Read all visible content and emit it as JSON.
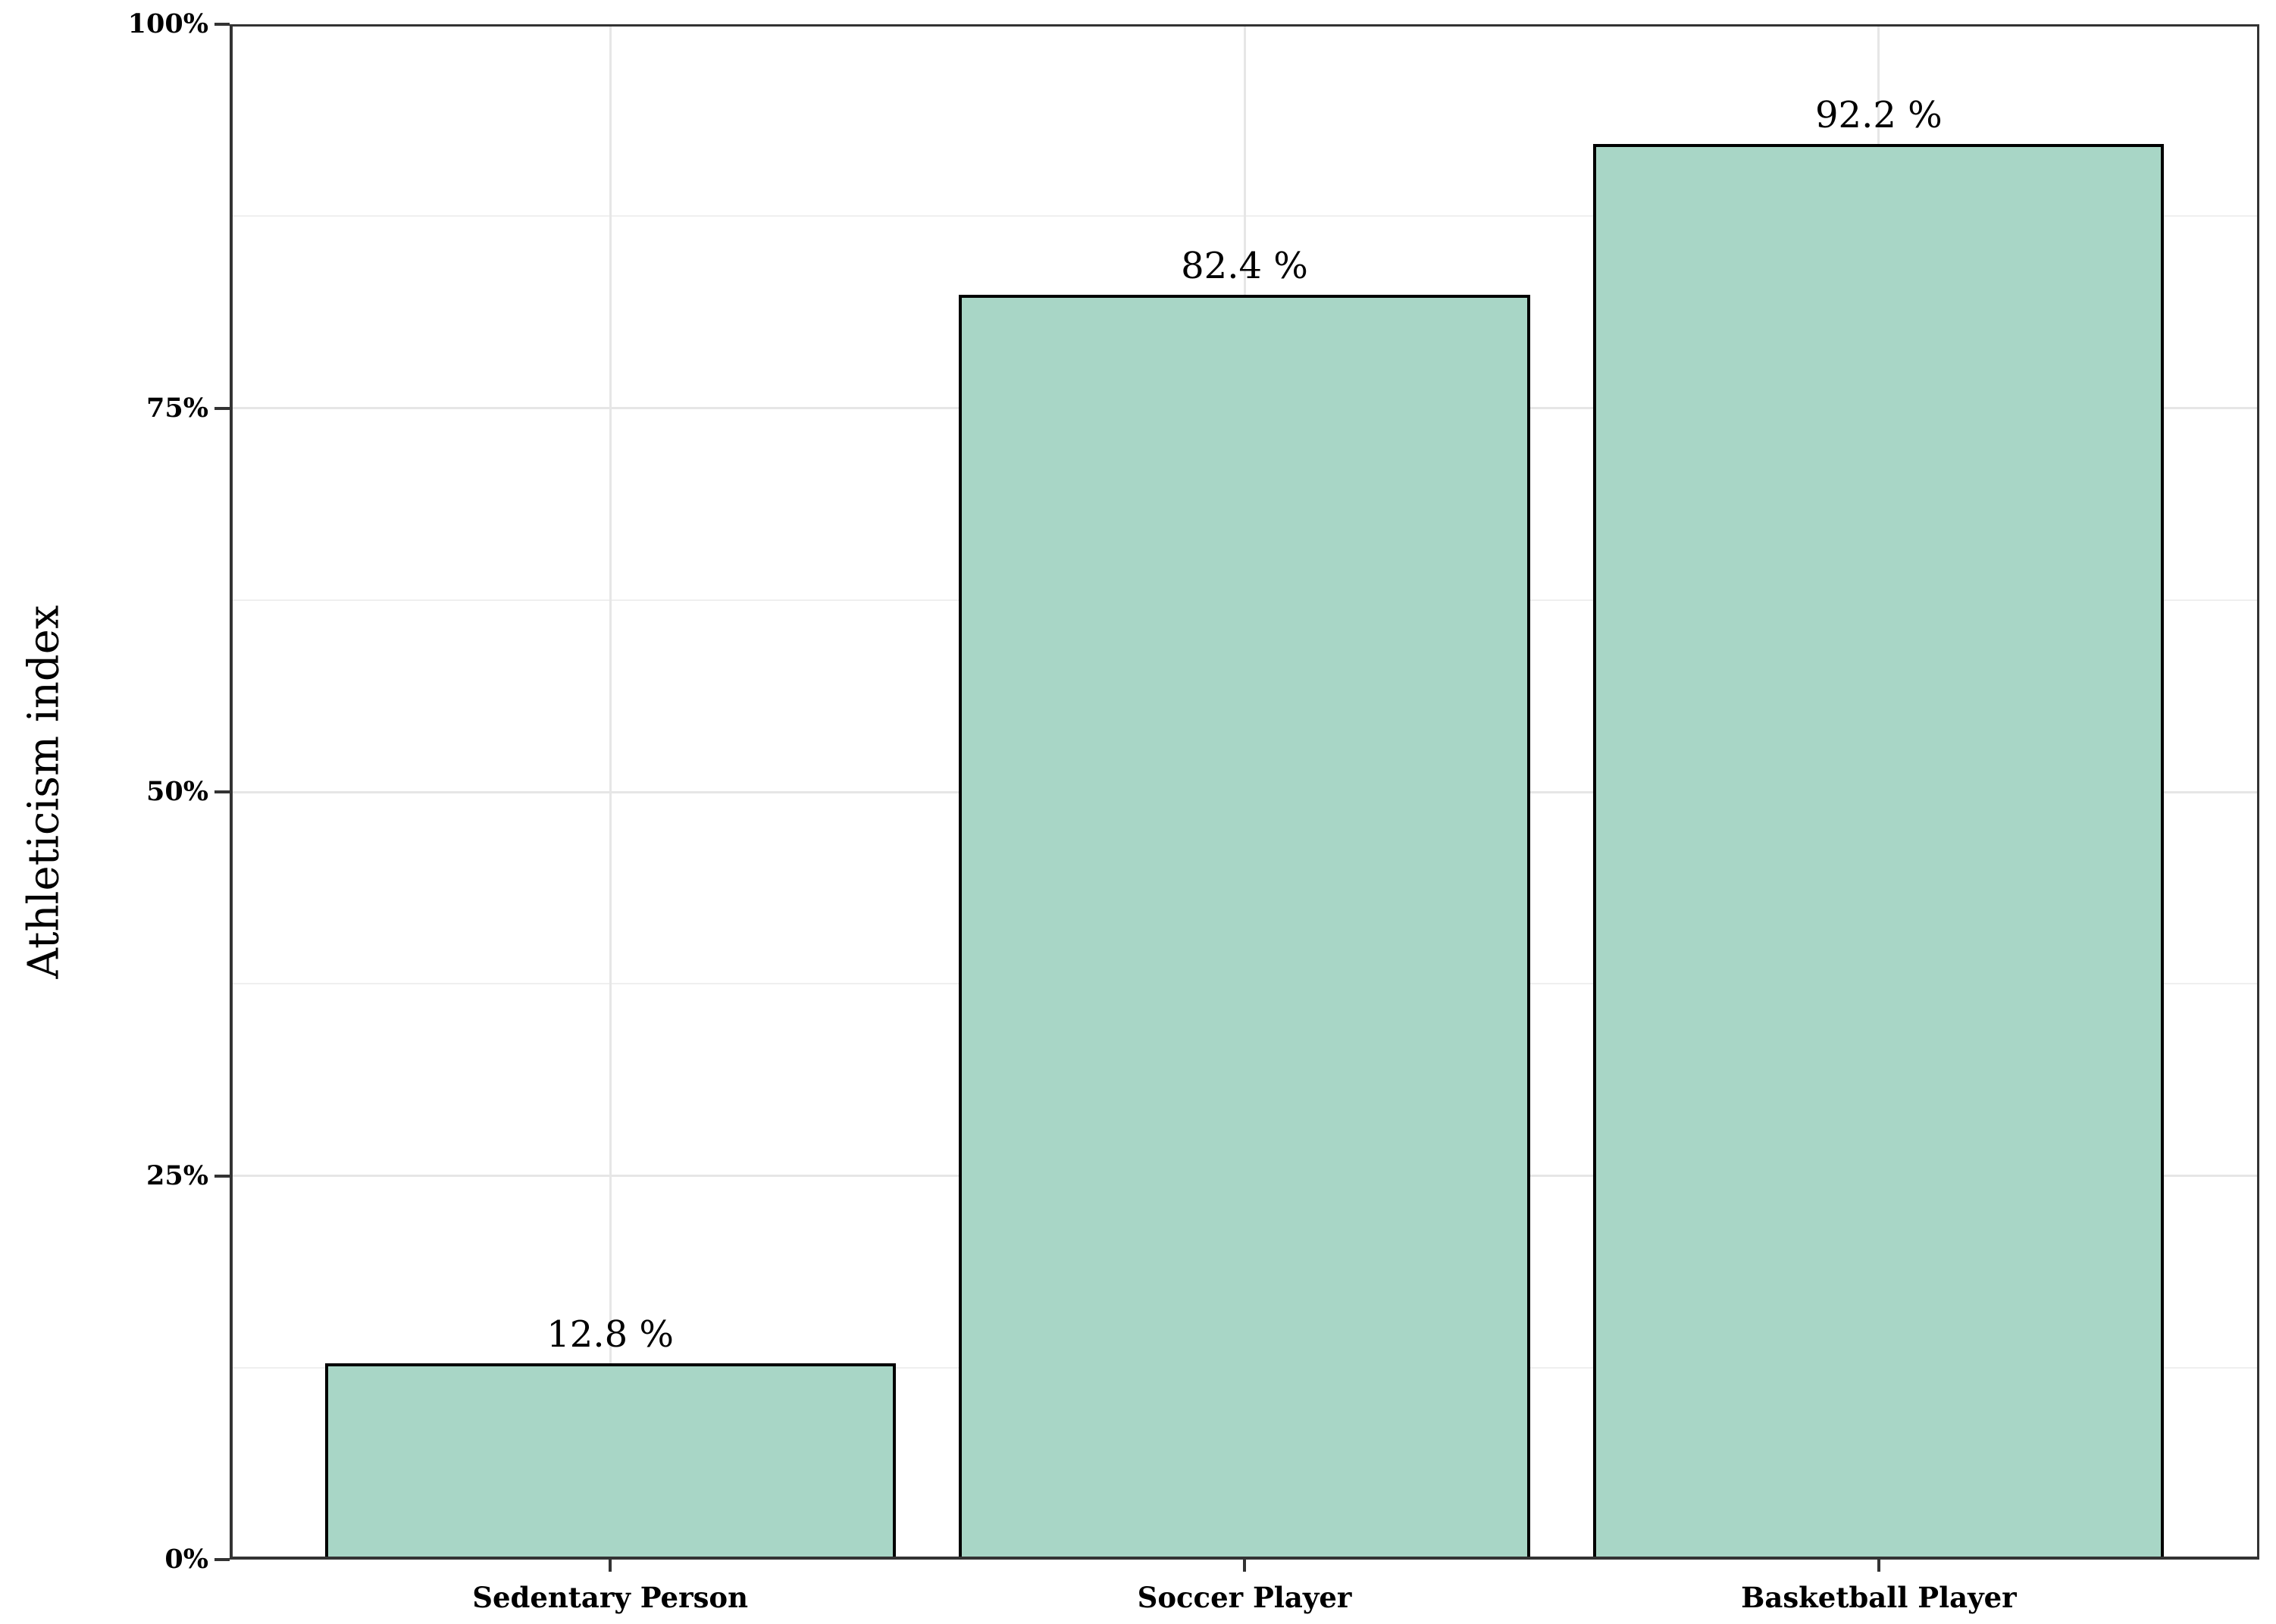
{
  "chart_data": {
    "type": "bar",
    "title": "",
    "categories": [
      "Sedentary Person",
      "Soccer Player",
      "Basketball Player"
    ],
    "values": [
      12.8,
      82.4,
      92.2
    ],
    "bar_labels": [
      "12.8 %",
      "82.4 %",
      "92.2 %"
    ],
    "xlabel": "",
    "ylabel": "Athleticism index",
    "ylim": [
      0,
      100
    ],
    "ytick_values": [
      0,
      25,
      50,
      75,
      100
    ],
    "ytick_labels": [
      "0%",
      "25%",
      "50%",
      "75%",
      "100%"
    ],
    "minor_ytick_values": [
      12.5,
      37.5,
      62.5,
      87.5
    ],
    "grid": "on",
    "legend": "none",
    "bar_width_fraction": 0.9,
    "colors": {
      "bar_fill": "#a8d6c6",
      "bar_border": "#000000",
      "axis": "#333333",
      "grid_major": "#e6e6e6",
      "grid_minor": "#efefef",
      "text": "#000000",
      "background": "#ffffff"
    }
  }
}
